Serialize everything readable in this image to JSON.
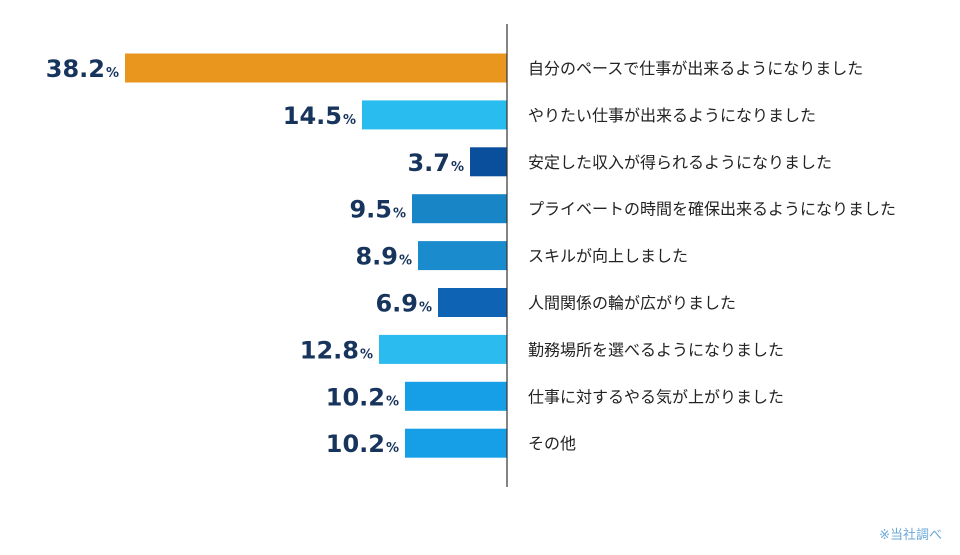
{
  "chart_data": {
    "type": "bar",
    "orientation": "horizontal",
    "categories": [
      "自分のペースで仕事が出来るようになりました",
      "やりたい仕事が出来るようになりました",
      "安定した収入が得られるようになりました",
      "プライベートの時間を確保出来るようになりました",
      "スキルが向上しました",
      "人間関係の輪が広がりました",
      "勤務場所を選べるようになりました",
      "仕事に対するやる気が上がりました",
      "その他"
    ],
    "values": [
      38.2,
      14.5,
      3.7,
      9.5,
      8.9,
      6.9,
      12.8,
      10.2,
      10.2
    ],
    "value_labels": [
      "38.2",
      "14.5",
      "3.7",
      "9.5",
      "8.9",
      "6.9",
      "12.8",
      "10.2",
      "10.2"
    ],
    "unit": "%",
    "colors": [
      "#e8961e",
      "#29bdef",
      "#0a4f9c",
      "#1785c6",
      "#1a8ccd",
      "#0f63b4",
      "#2bbbee",
      "#169fe6",
      "#169fe6"
    ],
    "grid": false,
    "legend": "none"
  },
  "note": "※当社調べ"
}
